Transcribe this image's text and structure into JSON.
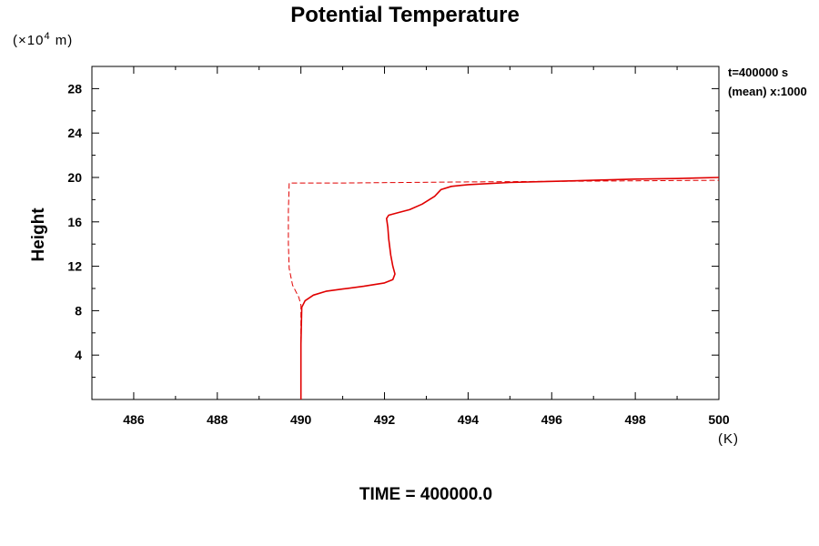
{
  "chart_data": {
    "type": "line",
    "title": "Potential Temperature",
    "xlabel": "(K)",
    "ylabel": "Height",
    "ylabel_unit_prefix": "(×10",
    "ylabel_unit_exp": "4",
    "ylabel_unit_suffix": " m)",
    "xlim": [
      485,
      500
    ],
    "ylim": [
      0,
      30
    ],
    "x_ticks": [
      486,
      488,
      490,
      492,
      494,
      496,
      498,
      500
    ],
    "y_ticks": [
      4,
      8,
      12,
      16,
      20,
      24,
      28
    ],
    "grid": false,
    "series_color": "#e00000",
    "series": [
      {
        "style": "solid",
        "points": [
          [
            490.0,
            0.0
          ],
          [
            490.0,
            5.0
          ],
          [
            490.02,
            8.3
          ],
          [
            490.1,
            8.9
          ],
          [
            490.3,
            9.4
          ],
          [
            490.6,
            9.75
          ],
          [
            491.0,
            9.95
          ],
          [
            491.5,
            10.2
          ],
          [
            492.0,
            10.5
          ],
          [
            492.2,
            10.8
          ],
          [
            492.25,
            11.3
          ],
          [
            492.2,
            12.0
          ],
          [
            492.15,
            13.0
          ],
          [
            492.1,
            14.5
          ],
          [
            492.08,
            15.5
          ],
          [
            492.05,
            16.3
          ],
          [
            492.1,
            16.6
          ],
          [
            492.3,
            16.8
          ],
          [
            492.6,
            17.1
          ],
          [
            492.9,
            17.6
          ],
          [
            493.2,
            18.3
          ],
          [
            493.35,
            18.9
          ],
          [
            493.6,
            19.2
          ],
          [
            494.0,
            19.35
          ],
          [
            495.0,
            19.55
          ],
          [
            496.0,
            19.65
          ],
          [
            497.0,
            19.75
          ],
          [
            498.0,
            19.85
          ],
          [
            499.0,
            19.9
          ],
          [
            500.0,
            20.0
          ]
        ]
      },
      {
        "style": "dashed",
        "points": [
          [
            490.0,
            0.0
          ],
          [
            490.0,
            8.5
          ],
          [
            489.95,
            9.2
          ],
          [
            489.8,
            10.3
          ],
          [
            489.72,
            11.8
          ],
          [
            489.7,
            14.0
          ],
          [
            489.7,
            17.0
          ],
          [
            489.72,
            19.5
          ],
          [
            491.0,
            19.5
          ],
          [
            492.5,
            19.55
          ],
          [
            494.0,
            19.6
          ],
          [
            496.0,
            19.65
          ],
          [
            498.0,
            19.7
          ],
          [
            500.0,
            19.75
          ]
        ]
      }
    ]
  },
  "annotations": {
    "time_line": "t=400000 s",
    "mean_line": "(mean) x:1000"
  },
  "footer": "TIME = 400000.0"
}
